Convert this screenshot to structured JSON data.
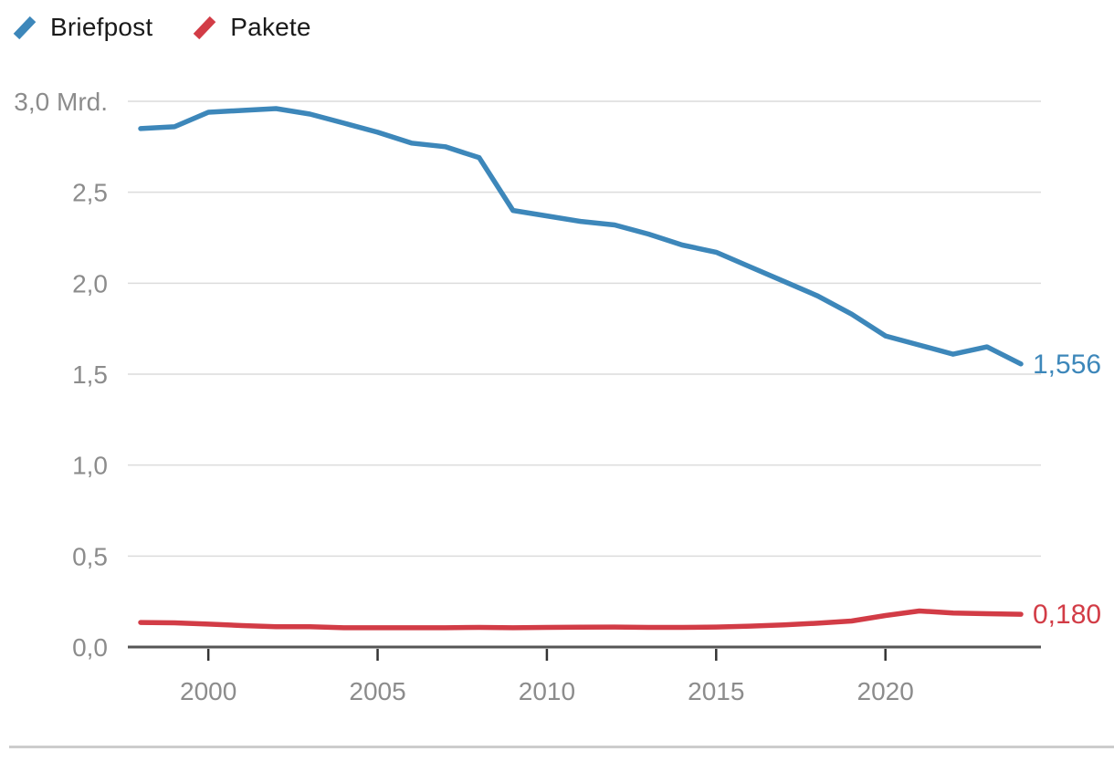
{
  "legend": {
    "items": [
      {
        "label": "Briefpost",
        "color": "#3d87ba"
      },
      {
        "label": "Pakete",
        "color": "#d23c46"
      }
    ]
  },
  "chart_data": {
    "type": "line",
    "title": "",
    "xlabel": "",
    "ylabel": "",
    "unit": "Mrd.",
    "grid": "horizontal",
    "legend_position": "top-left",
    "xlim": [
      1998,
      2024
    ],
    "ylim": [
      0,
      3.0
    ],
    "x": [
      1998,
      1999,
      2000,
      2001,
      2002,
      2003,
      2004,
      2005,
      2006,
      2007,
      2008,
      2009,
      2010,
      2011,
      2012,
      2013,
      2014,
      2015,
      2016,
      2017,
      2018,
      2019,
      2020,
      2021,
      2022,
      2023,
      2024
    ],
    "series": [
      {
        "name": "Briefpost",
        "color": "#3d87ba",
        "end_label": "1,556",
        "values": [
          2.85,
          2.86,
          2.94,
          2.95,
          2.96,
          2.93,
          2.88,
          2.83,
          2.77,
          2.75,
          2.69,
          2.4,
          2.37,
          2.34,
          2.32,
          2.27,
          2.21,
          2.17,
          2.09,
          2.01,
          1.93,
          1.83,
          1.71,
          1.66,
          1.61,
          1.65,
          1.556
        ]
      },
      {
        "name": "Pakete",
        "color": "#d23c46",
        "end_label": "0,180",
        "values": [
          0.135,
          0.133,
          0.126,
          0.118,
          0.112,
          0.112,
          0.106,
          0.106,
          0.106,
          0.106,
          0.108,
          0.106,
          0.108,
          0.109,
          0.11,
          0.108,
          0.108,
          0.11,
          0.115,
          0.122,
          0.131,
          0.143,
          0.173,
          0.198,
          0.187,
          0.183,
          0.18
        ]
      }
    ],
    "y_ticks": [
      {
        "value": 3.0,
        "label": "3,0 Mrd."
      },
      {
        "value": 2.5,
        "label": "2,5"
      },
      {
        "value": 2.0,
        "label": "2,0"
      },
      {
        "value": 1.5,
        "label": "1,5"
      },
      {
        "value": 1.0,
        "label": "1,0"
      },
      {
        "value": 0.5,
        "label": "0,5"
      },
      {
        "value": 0.0,
        "label": "0,0"
      }
    ],
    "x_ticks": [
      {
        "value": 2000,
        "label": "2000"
      },
      {
        "value": 2005,
        "label": "2005"
      },
      {
        "value": 2010,
        "label": "2010"
      },
      {
        "value": 2015,
        "label": "2015"
      },
      {
        "value": 2020,
        "label": "2020"
      }
    ]
  },
  "colors": {
    "axis_text": "#8c8c8c",
    "gridline": "#dcdcdc",
    "baseline": "#555555",
    "tick": "#333333",
    "divider": "#cccccc",
    "legend_text": "#1a1a1a"
  }
}
